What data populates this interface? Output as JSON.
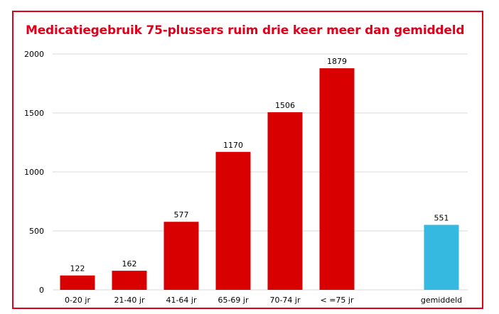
{
  "chart_data": {
    "type": "bar",
    "title": "Medicatiegebruik 75-plussers ruim drie keer meer dan gemiddeld",
    "categories": [
      "0-20 jr",
      "21-40 jr",
      "41-64 jr",
      "65-69 jr",
      "70-74 jr",
      "< =75 jr",
      "gemiddeld"
    ],
    "values": [
      122,
      162,
      577,
      1170,
      1506,
      1879,
      551
    ],
    "data_labels": [
      "122",
      "162",
      "577",
      "1170",
      "1506",
      "1879",
      "551"
    ],
    "yticks": [
      "0",
      "500",
      "1000",
      "1500",
      "2000"
    ],
    "ylim": [
      0,
      2000
    ],
    "xlabel": "",
    "ylabel": "",
    "grid": true,
    "legend": "none",
    "colors": {
      "frame": "#e0001b",
      "title": "#e0001b",
      "age_bars": "#d80000",
      "average_bar": "#36b9e0",
      "grid": "#d9d9d9"
    }
  }
}
